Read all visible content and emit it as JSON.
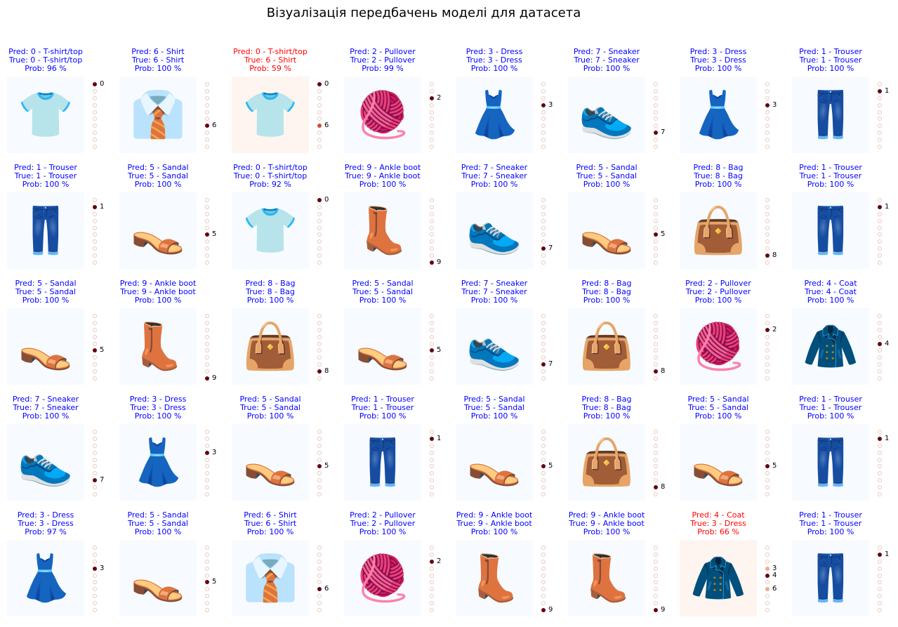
{
  "title": "Візуалізація передбачень моделі для датасета",
  "chart_data": {
    "type": "image_grid",
    "title": "Візуалізація передбачень моделі для датасета",
    "rows": 5,
    "cols": 8,
    "prob_scale": "0-9",
    "colors": {
      "correct": "#0000ff",
      "wrong": "#ff0000",
      "dot_active": "#67000d"
    },
    "panels": [
      {
        "pred": "Pred: 0 - T-shirt/top",
        "true": "True: 0 - T-shirt/top",
        "prob": "Prob: 96 %",
        "correct": true,
        "icon": "tshirt-icon",
        "bars": [
          {
            "k": 0,
            "p": 0.96,
            "label": "0"
          }
        ]
      },
      {
        "pred": "Pred: 6 - Shirt",
        "true": "True: 6 - Shirt",
        "prob": "Prob: 100 %",
        "correct": true,
        "icon": "shirt-icon",
        "bars": [
          {
            "k": 6,
            "p": 1.0,
            "label": "6"
          }
        ]
      },
      {
        "pred": "Pred: 0 - T-shirt/top",
        "true": "True: 6 - Shirt",
        "prob": "Prob: 59 %",
        "correct": false,
        "icon": "tshirt-icon",
        "bars": [
          {
            "k": 6,
            "p": 0.41,
            "label": "6"
          },
          {
            "k": 0,
            "p": 0.59,
            "label": "0"
          }
        ]
      },
      {
        "pred": "Pred: 2 - Pullover",
        "true": "True: 2 - Pullover",
        "prob": "Prob: 99 %",
        "correct": true,
        "icon": "pullover-icon",
        "bars": [
          {
            "k": 2,
            "p": 0.99,
            "label": "2"
          }
        ]
      },
      {
        "pred": "Pred: 3 - Dress",
        "true": "True: 3 - Dress",
        "prob": "Prob: 100 %",
        "correct": true,
        "icon": "dress-icon",
        "bars": [
          {
            "k": 3,
            "p": 1.0,
            "label": "3"
          }
        ]
      },
      {
        "pred": "Pred: 7 - Sneaker",
        "true": "True: 7 - Sneaker",
        "prob": "Prob: 100 %",
        "correct": true,
        "icon": "sneaker-icon",
        "bars": [
          {
            "k": 7,
            "p": 1.0,
            "label": "7"
          }
        ]
      },
      {
        "pred": "Pred: 3 - Dress",
        "true": "True: 3 - Dress",
        "prob": "Prob: 100 %",
        "correct": true,
        "icon": "dress-icon",
        "bars": [
          {
            "k": 3,
            "p": 1.0,
            "label": "3"
          }
        ]
      },
      {
        "pred": "Pred: 1 - Trouser",
        "true": "True: 1 - Trouser",
        "prob": "Prob: 100 %",
        "correct": true,
        "icon": "trouser-icon",
        "bars": [
          {
            "k": 1,
            "p": 1.0,
            "label": "1"
          }
        ]
      },
      {
        "pred": "Pred: 1 - Trouser",
        "true": "True: 1 - Trouser",
        "prob": "Prob: 100 %",
        "correct": true,
        "icon": "trouser-icon",
        "bars": [
          {
            "k": 1,
            "p": 1.0,
            "label": "1"
          }
        ]
      },
      {
        "pred": "Pred: 5 - Sandal",
        "true": "True: 5 - Sandal",
        "prob": "Prob: 100 %",
        "correct": true,
        "icon": "sandal-icon",
        "bars": [
          {
            "k": 5,
            "p": 1.0,
            "label": "5"
          }
        ]
      },
      {
        "pred": "Pred: 0 - T-shirt/top",
        "true": "True: 0 - T-shirt/top",
        "prob": "Prob: 92 %",
        "correct": true,
        "icon": "tshirt-icon",
        "bars": [
          {
            "k": 0,
            "p": 0.92,
            "label": "0"
          }
        ]
      },
      {
        "pred": "Pred: 9 - Ankle boot",
        "true": "True: 9 - Ankle boot",
        "prob": "Prob: 100 %",
        "correct": true,
        "icon": "ankle-boot-icon",
        "bars": [
          {
            "k": 9,
            "p": 1.0,
            "label": "9"
          }
        ]
      },
      {
        "pred": "Pred: 7 - Sneaker",
        "true": "True: 7 - Sneaker",
        "prob": "Prob: 100 %",
        "correct": true,
        "icon": "sneaker-icon",
        "bars": [
          {
            "k": 7,
            "p": 1.0,
            "label": "7"
          }
        ]
      },
      {
        "pred": "Pred: 5 - Sandal",
        "true": "True: 5 - Sandal",
        "prob": "Prob: 100 %",
        "correct": true,
        "icon": "sandal-icon",
        "bars": [
          {
            "k": 5,
            "p": 1.0,
            "label": "5"
          }
        ]
      },
      {
        "pred": "Pred: 8 - Bag",
        "true": "True: 8 - Bag",
        "prob": "Prob: 100 %",
        "correct": true,
        "icon": "bag-icon",
        "bars": [
          {
            "k": 8,
            "p": 1.0,
            "label": "8"
          }
        ]
      },
      {
        "pred": "Pred: 1 - Trouser",
        "true": "True: 1 - Trouser",
        "prob": "Prob: 100 %",
        "correct": true,
        "icon": "trouser-icon",
        "bars": [
          {
            "k": 1,
            "p": 1.0,
            "label": "1"
          }
        ]
      },
      {
        "pred": "Pred: 5 - Sandal",
        "true": "True: 5 - Sandal",
        "prob": "Prob: 100 %",
        "correct": true,
        "icon": "sandal-icon",
        "bars": [
          {
            "k": 5,
            "p": 1.0,
            "label": "5"
          }
        ]
      },
      {
        "pred": "Pred: 9 - Ankle boot",
        "true": "True: 9 - Ankle boot",
        "prob": "Prob: 100 %",
        "correct": true,
        "icon": "ankle-boot-icon",
        "bars": [
          {
            "k": 9,
            "p": 1.0,
            "label": "9"
          }
        ]
      },
      {
        "pred": "Pred: 8 - Bag",
        "true": "True: 8 - Bag",
        "prob": "Prob: 100 %",
        "correct": true,
        "icon": "bag-icon",
        "bars": [
          {
            "k": 8,
            "p": 1.0,
            "label": "8"
          }
        ]
      },
      {
        "pred": "Pred: 5 - Sandal",
        "true": "True: 5 - Sandal",
        "prob": "Prob: 100 %",
        "correct": true,
        "icon": "sandal-icon",
        "bars": [
          {
            "k": 5,
            "p": 1.0,
            "label": "5"
          }
        ]
      },
      {
        "pred": "Pred: 7 - Sneaker",
        "true": "True: 7 - Sneaker",
        "prob": "Prob: 100 %",
        "correct": true,
        "icon": "sneaker-icon",
        "bars": [
          {
            "k": 7,
            "p": 1.0,
            "label": "7"
          }
        ]
      },
      {
        "pred": "Pred: 8 - Bag",
        "true": "True: 8 - Bag",
        "prob": "Prob: 100 %",
        "correct": true,
        "icon": "bag-icon",
        "bars": [
          {
            "k": 8,
            "p": 1.0,
            "label": "8"
          }
        ]
      },
      {
        "pred": "Pred: 2 - Pullover",
        "true": "True: 2 - Pullover",
        "prob": "Prob: 100 %",
        "correct": true,
        "icon": "pullover-icon",
        "bars": [
          {
            "k": 2,
            "p": 1.0,
            "label": "2"
          }
        ]
      },
      {
        "pred": "Pred: 4 - Coat",
        "true": "True: 4 - Coat",
        "prob": "Prob: 100 %",
        "correct": true,
        "icon": "coat-icon",
        "bars": [
          {
            "k": 4,
            "p": 1.0,
            "label": "4"
          }
        ]
      },
      {
        "pred": "Pred: 7 - Sneaker",
        "true": "True: 7 - Sneaker",
        "prob": "Prob: 100 %",
        "correct": true,
        "icon": "sneaker-icon",
        "bars": [
          {
            "k": 7,
            "p": 1.0,
            "label": "7"
          }
        ]
      },
      {
        "pred": "Pred: 3 - Dress",
        "true": "True: 3 - Dress",
        "prob": "Prob: 100 %",
        "correct": true,
        "icon": "dress-icon",
        "bars": [
          {
            "k": 3,
            "p": 1.0,
            "label": "3"
          }
        ]
      },
      {
        "pred": "Pred: 5 - Sandal",
        "true": "True: 5 - Sandal",
        "prob": "Prob: 100 %",
        "correct": true,
        "icon": "sandal-icon",
        "bars": [
          {
            "k": 5,
            "p": 1.0,
            "label": "5"
          }
        ]
      },
      {
        "pred": "Pred: 1 - Trouser",
        "true": "True: 1 - Trouser",
        "prob": "Prob: 100 %",
        "correct": true,
        "icon": "trouser-icon",
        "bars": [
          {
            "k": 1,
            "p": 1.0,
            "label": "1"
          }
        ]
      },
      {
        "pred": "Pred: 5 - Sandal",
        "true": "True: 5 - Sandal",
        "prob": "Prob: 100 %",
        "correct": true,
        "icon": "sandal-icon",
        "bars": [
          {
            "k": 5,
            "p": 1.0,
            "label": "5"
          }
        ]
      },
      {
        "pred": "Pred: 8 - Bag",
        "true": "True: 8 - Bag",
        "prob": "Prob: 100 %",
        "correct": true,
        "icon": "bag-icon",
        "bars": [
          {
            "k": 8,
            "p": 1.0,
            "label": "8"
          }
        ]
      },
      {
        "pred": "Pred: 5 - Sandal",
        "true": "True: 5 - Sandal",
        "prob": "Prob: 100 %",
        "correct": true,
        "icon": "sandal-icon",
        "bars": [
          {
            "k": 5,
            "p": 1.0,
            "label": "5"
          }
        ]
      },
      {
        "pred": "Pred: 1 - Trouser",
        "true": "True: 1 - Trouser",
        "prob": "Prob: 100 %",
        "correct": true,
        "icon": "trouser-icon",
        "bars": [
          {
            "k": 1,
            "p": 1.0,
            "label": "1"
          }
        ]
      },
      {
        "pred": "Pred: 3 - Dress",
        "true": "True: 3 - Dress",
        "prob": "Prob: 97 %",
        "correct": true,
        "icon": "dress-icon",
        "bars": [
          {
            "k": 3,
            "p": 0.97,
            "label": "3"
          }
        ]
      },
      {
        "pred": "Pred: 5 - Sandal",
        "true": "True: 5 - Sandal",
        "prob": "Prob: 100 %",
        "correct": true,
        "icon": "sandal-icon",
        "bars": [
          {
            "k": 5,
            "p": 1.0,
            "label": "5"
          }
        ]
      },
      {
        "pred": "Pred: 6 - Shirt",
        "true": "True: 6 - Shirt",
        "prob": "Prob: 100 %",
        "correct": true,
        "icon": "shirt-icon",
        "bars": [
          {
            "k": 6,
            "p": 1.0,
            "label": "6"
          }
        ]
      },
      {
        "pred": "Pred: 2 - Pullover",
        "true": "True: 2 - Pullover",
        "prob": "Prob: 100 %",
        "correct": true,
        "icon": "pullover-icon",
        "bars": [
          {
            "k": 2,
            "p": 1.0,
            "label": "2"
          }
        ]
      },
      {
        "pred": "Pred: 9 - Ankle boot",
        "true": "True: 9 - Ankle boot",
        "prob": "Prob: 100 %",
        "correct": true,
        "icon": "ankle-boot-icon",
        "bars": [
          {
            "k": 9,
            "p": 1.0,
            "label": "9"
          }
        ]
      },
      {
        "pred": "Pred: 9 - Ankle boot",
        "true": "True: 9 - Ankle boot",
        "prob": "Prob: 100 %",
        "correct": true,
        "icon": "ankle-boot-icon",
        "bars": [
          {
            "k": 9,
            "p": 1.0,
            "label": "9"
          }
        ]
      },
      {
        "pred": "Pred: 4 - Coat",
        "true": "True: 3 - Dress",
        "prob": "Prob: 66 %",
        "correct": false,
        "icon": "coat-icon",
        "bars": [
          {
            "k": 6,
            "p": 0.1,
            "label": "6"
          },
          {
            "k": 4,
            "p": 0.66,
            "label": "4"
          },
          {
            "k": 3,
            "p": 0.24,
            "label": "3"
          }
        ]
      },
      {
        "pred": "Pred: 1 - Trouser",
        "true": "True: 1 - Trouser",
        "prob": "Prob: 100 %",
        "correct": true,
        "icon": "trouser-icon",
        "bars": [
          {
            "k": 1,
            "p": 1.0,
            "label": "1"
          }
        ]
      }
    ]
  }
}
